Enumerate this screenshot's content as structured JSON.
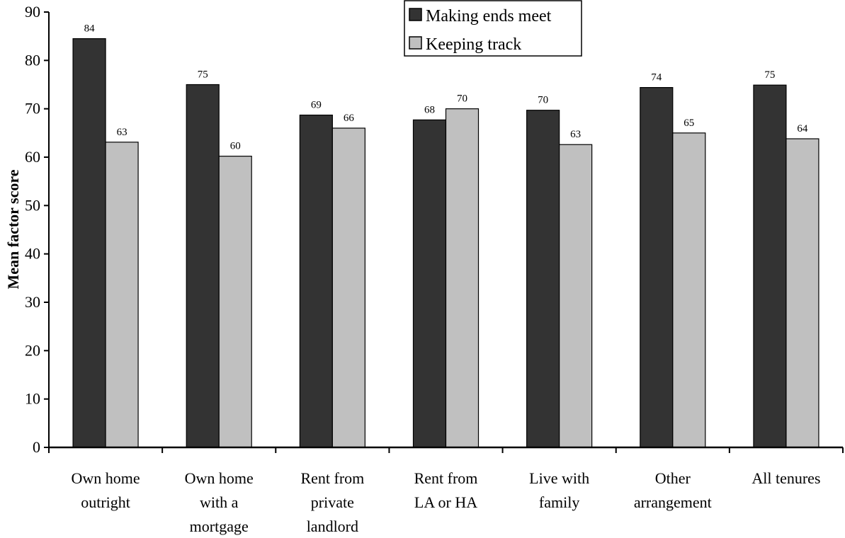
{
  "chart_data": {
    "type": "bar",
    "title": "",
    "xlabel": "",
    "ylabel": "Mean factor score",
    "ylim": [
      0,
      90
    ],
    "yticks": [
      0,
      10,
      20,
      30,
      40,
      50,
      60,
      70,
      80,
      90
    ],
    "grid": false,
    "legend_position": "top-center",
    "categories": [
      [
        "Own home",
        "outright"
      ],
      [
        "Own home",
        "with a",
        "mortgage"
      ],
      [
        "Rent from",
        "private",
        "landlord"
      ],
      [
        "Rent from",
        "LA or HA"
      ],
      [
        "Live with",
        "family"
      ],
      [
        "Other",
        "arrangement"
      ],
      [
        "All tenures"
      ]
    ],
    "series": [
      {
        "name": "Making ends meet",
        "color": "#333333",
        "values": [
          84.5,
          75,
          68.7,
          67.7,
          69.7,
          74.4,
          74.9
        ],
        "labels": [
          "84",
          "75",
          "69",
          "68",
          "70",
          "74",
          "75"
        ]
      },
      {
        "name": "Keeping track",
        "color": "#c0c0c0",
        "values": [
          63.1,
          60.2,
          66,
          70,
          62.6,
          65,
          63.8
        ],
        "labels": [
          "63",
          "60",
          "66",
          "70",
          "63",
          "65",
          "64"
        ]
      }
    ]
  }
}
